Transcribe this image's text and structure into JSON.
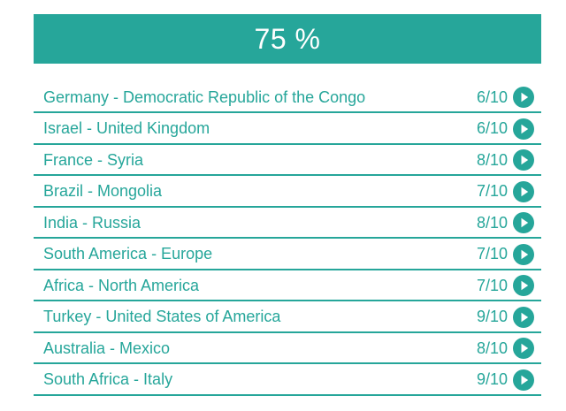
{
  "header": {
    "score_text": "75 %"
  },
  "colors": {
    "accent": "#26a69a",
    "text": "#26a69a",
    "banner_text": "#ffffff"
  },
  "results": [
    {
      "pair": "Germany - Democratic Republic of the Congo",
      "score": "6/10",
      "icon": "play-circle-icon"
    },
    {
      "pair": "Israel - United Kingdom",
      "score": "6/10",
      "icon": "play-circle-icon"
    },
    {
      "pair": "France - Syria",
      "score": "8/10",
      "icon": "play-circle-icon"
    },
    {
      "pair": "Brazil - Mongolia",
      "score": "7/10",
      "icon": "play-circle-icon"
    },
    {
      "pair": "India - Russia",
      "score": "8/10",
      "icon": "play-circle-icon"
    },
    {
      "pair": "South America - Europe",
      "score": "7/10",
      "icon": "play-circle-icon"
    },
    {
      "pair": "Africa - North America",
      "score": "7/10",
      "icon": "play-circle-icon"
    },
    {
      "pair": "Turkey - United States of America",
      "score": "9/10",
      "icon": "play-circle-icon"
    },
    {
      "pair": "Australia - Mexico",
      "score": "8/10",
      "icon": "play-circle-icon"
    },
    {
      "pair": "South Africa - Italy",
      "score": "9/10",
      "icon": "play-circle-icon"
    }
  ]
}
